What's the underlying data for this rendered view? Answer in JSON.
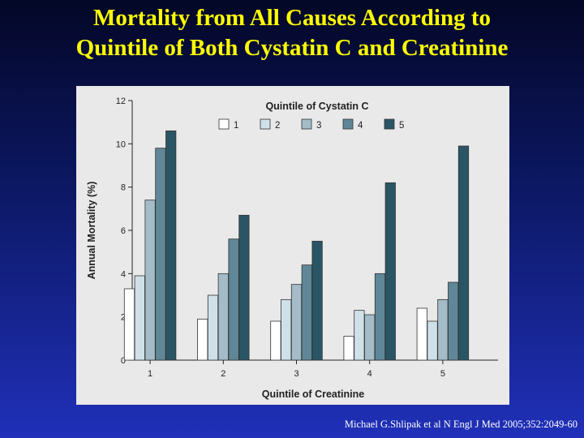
{
  "slide": {
    "title_line1": "Mortality from All Causes According to",
    "title_line2": "Quintile of Both Cystatin C and Creatinine",
    "citation": "Michael G.Shlipak et al N Engl J Med 2005;352:2049-60"
  },
  "chart_data": {
    "type": "bar",
    "legend_title": "Quintile of Cystatin C",
    "legend_placement": "top-center",
    "categories": [
      "1",
      "2",
      "3",
      "4",
      "5"
    ],
    "xlabel": "Quintile of Creatinine",
    "ylabel": "Annual Mortality (%)",
    "ylim": [
      0,
      12
    ],
    "yticks": [
      0,
      2,
      4,
      6,
      8,
      10,
      12
    ],
    "grid": false,
    "series": [
      {
        "name": "1",
        "color": "#ffffff",
        "values": [
          3.3,
          1.9,
          1.8,
          1.1,
          2.4
        ]
      },
      {
        "name": "2",
        "color": "#cfe0e8",
        "values": [
          3.9,
          3.0,
          2.8,
          2.3,
          1.8
        ]
      },
      {
        "name": "3",
        "color": "#a3bcc8",
        "values": [
          7.4,
          4.0,
          3.5,
          2.1,
          2.8
        ]
      },
      {
        "name": "4",
        "color": "#5f8797",
        "values": [
          9.8,
          5.6,
          4.4,
          4.0,
          3.6
        ]
      },
      {
        "name": "5",
        "color": "#2a5565",
        "values": [
          10.6,
          6.7,
          5.5,
          8.2,
          9.9
        ]
      }
    ]
  }
}
